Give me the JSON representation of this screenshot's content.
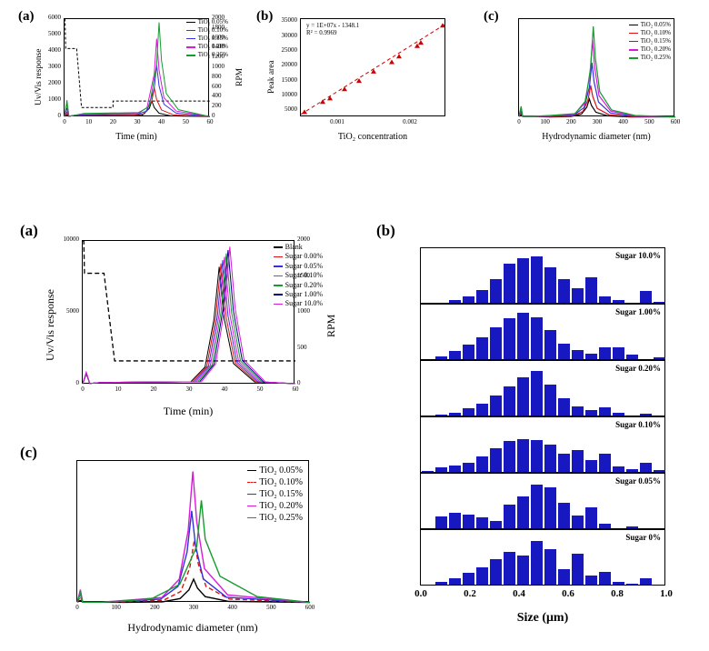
{
  "top": {
    "a": {
      "label": "(a)",
      "xlabel": "Time (min)",
      "ylabel_left": "Uv/Vis response",
      "ylabel_right": "RPM",
      "xlim": [
        0,
        60
      ],
      "xtick_step": 10,
      "ylim_left": [
        0,
        6000
      ],
      "ytick_left_step": 1000,
      "ylim_right": [
        0,
        2000
      ],
      "ytick_right": [
        0,
        200,
        400,
        600,
        800,
        1000,
        1200,
        1400,
        1600,
        1800,
        2000
      ],
      "series": [
        {
          "name": "TiO₂ 0.05%",
          "color": "#000000",
          "peak_x": 36,
          "peak_y": 1000
        },
        {
          "name": "TiO₂ 0.10%",
          "color": "#d11",
          "peak_x": 37,
          "peak_y": 1800
        },
        {
          "name": "TiO₂ 0.15%",
          "color": "#3333dd",
          "peak_x": 38,
          "peak_y": 3200
        },
        {
          "name": "TiO₂ 0.20%",
          "color": "#d81bd8",
          "peak_x": 38,
          "peak_y": 4800
        },
        {
          "name": "TiO₂ 0.25%",
          "color": "#169c2e",
          "peak_x": 39,
          "peak_y": 5800
        }
      ],
      "rpm_profile": [
        [
          0,
          2000
        ],
        [
          0.2,
          2000
        ],
        [
          0.5,
          1400
        ],
        [
          5,
          1400
        ],
        [
          7,
          200
        ],
        [
          20,
          200
        ],
        [
          20,
          330
        ],
        [
          60,
          330
        ]
      ]
    },
    "b": {
      "label": "(b)",
      "xlabel": "TiO₂ concentration",
      "ylabel": "Peak area",
      "eq_text": "y = 1E+07x - 1348.1\nR² = 0.9969",
      "xlim": [
        0.0005,
        0.0025
      ],
      "xticks": [
        0.001,
        0.002
      ],
      "ylim": [
        3000,
        36000
      ],
      "ytick_step": 5000,
      "points": [
        [
          0.00055,
          4700
        ],
        [
          0.0008,
          8100
        ],
        [
          0.0009,
          9300
        ],
        [
          0.0011,
          12400
        ],
        [
          0.0013,
          15200
        ],
        [
          0.0015,
          18300
        ],
        [
          0.00175,
          21500
        ],
        [
          0.00185,
          23400
        ],
        [
          0.0021,
          26900
        ],
        [
          0.00215,
          28000
        ],
        [
          0.00245,
          33800
        ]
      ],
      "line_color": "#cc0000",
      "marker_color": "#cc0000"
    },
    "c": {
      "label": "(c)",
      "xlabel": "Hydrodynamic diameter (nm)",
      "ylabel": "",
      "xlim": [
        0,
        600
      ],
      "xtick_step": 100,
      "series": [
        {
          "name": "TiO₂ 0.05%",
          "color": "#000000",
          "peak_x": 270,
          "peak_h": 0.2
        },
        {
          "name": "TiO₂ 0.10%",
          "color": "#d11",
          "peak_x": 275,
          "peak_h": 0.35
        },
        {
          "name": "TiO₂ 0.15%",
          "color": "#3333dd",
          "peak_x": 280,
          "peak_h": 0.6
        },
        {
          "name": "TiO₂ 0.20%",
          "color": "#d81bd8",
          "peak_x": 282,
          "peak_h": 0.85
        },
        {
          "name": "TiO₂ 0.25%",
          "color": "#169c2e",
          "peak_x": 285,
          "peak_h": 1.0
        }
      ]
    }
  },
  "bottom": {
    "a": {
      "label": "(a)",
      "xlabel": "Time (min)",
      "ylabel_left": "Uv/Vis response",
      "ylabel_right": "RPM",
      "xlim": [
        0,
        60
      ],
      "xtick_step": 10,
      "ylim_left": [
        0,
        10000
      ],
      "ytick_left_step": 5000,
      "ylim_right": [
        0,
        2000
      ],
      "ytick_right_step": 500,
      "series": [
        {
          "name": "Blank",
          "color": "#000000"
        },
        {
          "name": "Sugar 0.00%",
          "color": "#d11"
        },
        {
          "name": "Sugar 0.05%",
          "color": "#3333dd"
        },
        {
          "name": "Sugar 0.10%",
          "color": "#d81bd8"
        },
        {
          "name": "Sugar 0.20%",
          "color": "#169c2e"
        },
        {
          "name": "Sugar 1.00%",
          "color": "#000080"
        },
        {
          "name": "Sugar 10.0%",
          "color": "#d81bd8"
        }
      ],
      "peak_x": 40,
      "peak_y_range": [
        8200,
        9600
      ],
      "rpm_profile": [
        [
          0,
          2000
        ],
        [
          0.3,
          2000
        ],
        [
          0.5,
          1550
        ],
        [
          6,
          1550
        ],
        [
          9,
          330
        ],
        [
          60,
          330
        ]
      ]
    },
    "c": {
      "label": "(c)",
      "xlabel": "Hydrodynamic diameter (nm)",
      "xlim": [
        0,
        600
      ],
      "xtick_step": 100,
      "series": [
        {
          "name": "TiO₂ 0.05%",
          "color": "#000000",
          "peak_x": 300,
          "peak_h": 0.18
        },
        {
          "name": "TiO₂ 0.10%",
          "color": "#d11",
          "peak_x": 302,
          "peak_h": 0.48,
          "dashed": true
        },
        {
          "name": "TiO₂ 0.15%",
          "color": "#3333dd",
          "peak_x": 295,
          "peak_h": 0.7
        },
        {
          "name": "TiO₂ 0.20%",
          "color": "#d81bd8",
          "peak_x": 298,
          "peak_h": 1.0
        },
        {
          "name": "TiO₂ 0.25%",
          "color": "#169c2e",
          "peak_x": 320,
          "peak_h": 0.78
        }
      ]
    },
    "b": {
      "label": "(b)",
      "xlabel": "Size (μm)",
      "xlim": [
        0.0,
        1.0
      ],
      "xtick_step": 0.2,
      "bar_color": "#1818c0",
      "rows": [
        {
          "label": "Sugar 10.0%",
          "bars": [
            0,
            0,
            0.05,
            0.12,
            0.25,
            0.45,
            0.75,
            0.85,
            0.88,
            0.68,
            0.45,
            0.28,
            0.48,
            0.12,
            0.05,
            0,
            0.22,
            0.02
          ]
        },
        {
          "label": "Sugar 1.00%",
          "bars": [
            0,
            0.06,
            0.15,
            0.28,
            0.42,
            0.6,
            0.78,
            0.88,
            0.8,
            0.55,
            0.3,
            0.18,
            0.1,
            0.22,
            0.23,
            0.08,
            0,
            0.03
          ]
        },
        {
          "label": "Sugar 0.20%",
          "bars": [
            0,
            0.02,
            0.06,
            0.14,
            0.22,
            0.38,
            0.55,
            0.72,
            0.85,
            0.58,
            0.32,
            0.18,
            0.1,
            0.15,
            0.05,
            0,
            0.03,
            0
          ]
        },
        {
          "label": "Sugar 0.10%",
          "bars": [
            0.02,
            0.08,
            0.12,
            0.18,
            0.3,
            0.45,
            0.58,
            0.62,
            0.6,
            0.52,
            0.35,
            0.42,
            0.22,
            0.35,
            0.1,
            0.05,
            0.18,
            0.04
          ]
        },
        {
          "label": "Sugar 0.05%",
          "bars": [
            0,
            0.22,
            0.3,
            0.26,
            0.2,
            0.14,
            0.45,
            0.6,
            0.82,
            0.78,
            0.48,
            0.25,
            0.4,
            0.08,
            0,
            0.04,
            0,
            0
          ]
        },
        {
          "label": "Sugar 0%",
          "bars": [
            0,
            0.05,
            0.12,
            0.22,
            0.32,
            0.48,
            0.62,
            0.55,
            0.82,
            0.68,
            0.3,
            0.58,
            0.18,
            0.25,
            0.06,
            0.02,
            0.12,
            0
          ]
        }
      ]
    }
  },
  "colors": {
    "axis": "#000000",
    "bg": "#ffffff"
  },
  "fontsizes": {
    "panel_label": 15,
    "big_label": 17,
    "axis_label": 10,
    "tick": 7,
    "legend": 7,
    "hist_label": 9
  }
}
